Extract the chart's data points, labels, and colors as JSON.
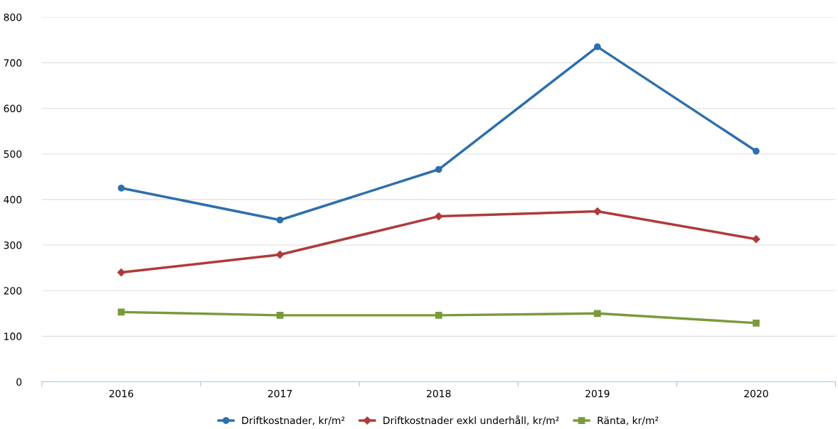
{
  "chart_data": {
    "type": "line",
    "categories": [
      "2016",
      "2017",
      "2018",
      "2019",
      "2020"
    ],
    "series": [
      {
        "name": "Driftkostnader, kr/m²",
        "color": "#2e6fad",
        "marker": "circle",
        "values": [
          425,
          355,
          466,
          735,
          506
        ]
      },
      {
        "name": "Driftkostnader exkl underhåll, kr/m²",
        "color": "#b03a3a",
        "marker": "diamond",
        "values": [
          240,
          279,
          363,
          374,
          313
        ]
      },
      {
        "name": "Ränta, kr/m²",
        "color": "#7a9a3a",
        "marker": "square",
        "values": [
          153,
          146,
          146,
          150,
          129
        ]
      }
    ],
    "ylim": [
      0,
      800
    ],
    "yticks": [
      0,
      100,
      200,
      300,
      400,
      500,
      600,
      700,
      800
    ],
    "grid": "y",
    "legend": "bottom"
  }
}
